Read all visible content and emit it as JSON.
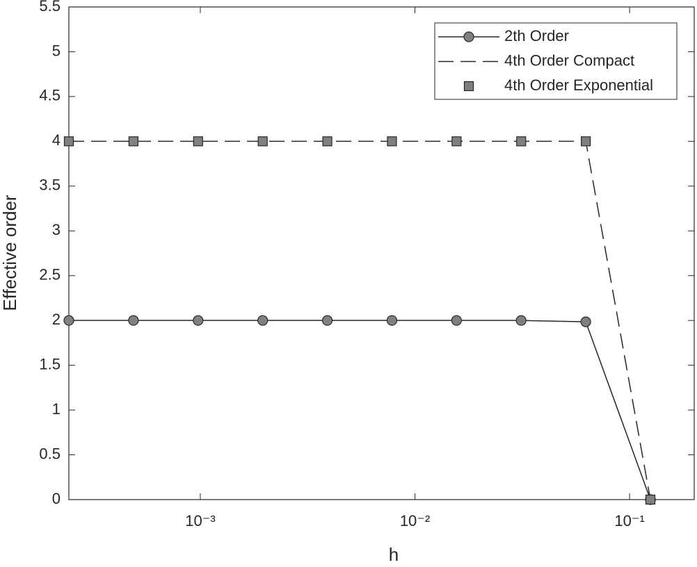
{
  "chart_data": {
    "type": "line",
    "xlabel": "h",
    "ylabel": "Effective order",
    "x": [
      0.000244140625,
      0.00048828125,
      0.0009765625,
      0.001953125,
      0.00390625,
      0.0078125,
      0.015625,
      0.03125,
      0.0625,
      0.125
    ],
    "series": [
      {
        "name": "2th Order",
        "color": "#262626",
        "marker_color": "#808080",
        "linestyle": "solid",
        "marker": "circle",
        "values": [
          2,
          2,
          2,
          2,
          2,
          2,
          2,
          2,
          1.985,
          0
        ]
      },
      {
        "name": "4th Order Compact",
        "color": "#262626",
        "marker_color": "#808080",
        "linestyle": "dashed",
        "marker": "none",
        "values": [
          4,
          4,
          4,
          4,
          4,
          4,
          4,
          4,
          4,
          0
        ]
      },
      {
        "name": "4th Order Exponential",
        "color": "#262626",
        "marker_color": "#808080",
        "linestyle": "none",
        "marker": "square",
        "values": [
          4,
          4,
          4,
          4,
          4,
          4,
          4,
          4,
          4,
          0
        ]
      }
    ],
    "xscale": "log",
    "xlim": [
      0.000244140625,
      0.2
    ],
    "xticks": [
      {
        "value": 0.001,
        "label": "10⁻³"
      },
      {
        "value": 0.01,
        "label": "10⁻²"
      },
      {
        "value": 0.1,
        "label": "10⁻¹"
      }
    ],
    "ylim": [
      0,
      5.5
    ],
    "yticks": [
      0,
      0.5,
      1,
      1.5,
      2,
      2.5,
      3,
      3.5,
      4,
      4.5,
      5,
      5.5
    ],
    "grid": false,
    "legend": "northeast"
  }
}
